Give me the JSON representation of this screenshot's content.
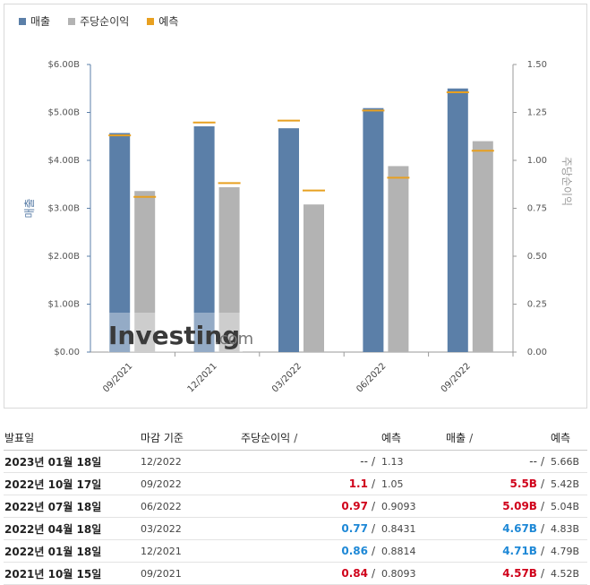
{
  "legend": [
    {
      "label": "매출",
      "color": "#5b7fa8"
    },
    {
      "label": "주당순이익",
      "color": "#b3b3b3"
    },
    {
      "label": "예측",
      "color": "#e8a020"
    }
  ],
  "chart_data": {
    "type": "bar",
    "categories": [
      "09/2021",
      "12/2021",
      "03/2022",
      "06/2022",
      "09/2022"
    ],
    "series": [
      {
        "name": "매출",
        "axis": "left",
        "unit": "B USD",
        "values": [
          4.57,
          4.71,
          4.67,
          5.09,
          5.5
        ]
      },
      {
        "name": "주당순이익",
        "axis": "right",
        "values": [
          0.84,
          0.86,
          0.77,
          0.97,
          1.1
        ]
      },
      {
        "name": "예측",
        "kind": "marker",
        "revenue_values": [
          4.52,
          4.79,
          4.83,
          5.04,
          5.42
        ],
        "eps_values": [
          0.8093,
          0.8814,
          0.8431,
          0.9093,
          1.05
        ]
      }
    ],
    "y_left": {
      "label": "매출",
      "ylim": [
        0,
        6
      ],
      "ticks": [
        "$0.00",
        "$1.00B",
        "$2.00B",
        "$3.00B",
        "$4.00B",
        "$5.00B",
        "$6.00B"
      ]
    },
    "y_right": {
      "label": "주당순이익",
      "ylim": [
        0,
        1.5
      ],
      "ticks": [
        "0.00",
        "0.25",
        "0.50",
        "0.75",
        "1.00",
        "1.25",
        "1.50"
      ]
    },
    "grid": false,
    "legend_position": "top-left",
    "colors": {
      "revenue": "#5b7fa8",
      "eps": "#b3b3b3",
      "forecast": "#e8a020"
    }
  },
  "watermark": {
    "brand": "Investing",
    "suffix": ".com"
  },
  "table": {
    "headers": {
      "date": "발표일",
      "period": "마감 기준",
      "eps": "주당순이익",
      "eps_sep": "/",
      "eps_forecast": "예측",
      "revenue": "매출",
      "revenue_sep": "/",
      "revenue_forecast": "예측"
    },
    "rows": [
      {
        "date": "2023년 01월 18일",
        "period": "12/2022",
        "eps": "--",
        "eps_class": "plain",
        "eps_forecast": "1.13",
        "revenue": "--",
        "revenue_class": "plain",
        "revenue_forecast": "5.66B"
      },
      {
        "date": "2022년 10월 17일",
        "period": "09/2022",
        "eps": "1.1",
        "eps_class": "red",
        "eps_forecast": "1.05",
        "revenue": "5.5B",
        "revenue_class": "red",
        "revenue_forecast": "5.42B"
      },
      {
        "date": "2022년 07월 18일",
        "period": "06/2022",
        "eps": "0.97",
        "eps_class": "red",
        "eps_forecast": "0.9093",
        "revenue": "5.09B",
        "revenue_class": "red",
        "revenue_forecast": "5.04B"
      },
      {
        "date": "2022년 04월 18일",
        "period": "03/2022",
        "eps": "0.77",
        "eps_class": "blue",
        "eps_forecast": "0.8431",
        "revenue": "4.67B",
        "revenue_class": "blue",
        "revenue_forecast": "4.83B"
      },
      {
        "date": "2022년 01월 18일",
        "period": "12/2021",
        "eps": "0.86",
        "eps_class": "blue",
        "eps_forecast": "0.8814",
        "revenue": "4.71B",
        "revenue_class": "blue",
        "revenue_forecast": "4.79B"
      },
      {
        "date": "2021년 10월 15일",
        "period": "09/2021",
        "eps": "0.84",
        "eps_class": "red",
        "eps_forecast": "0.8093",
        "revenue": "4.57B",
        "revenue_class": "red",
        "revenue_forecast": "4.52B"
      }
    ]
  }
}
